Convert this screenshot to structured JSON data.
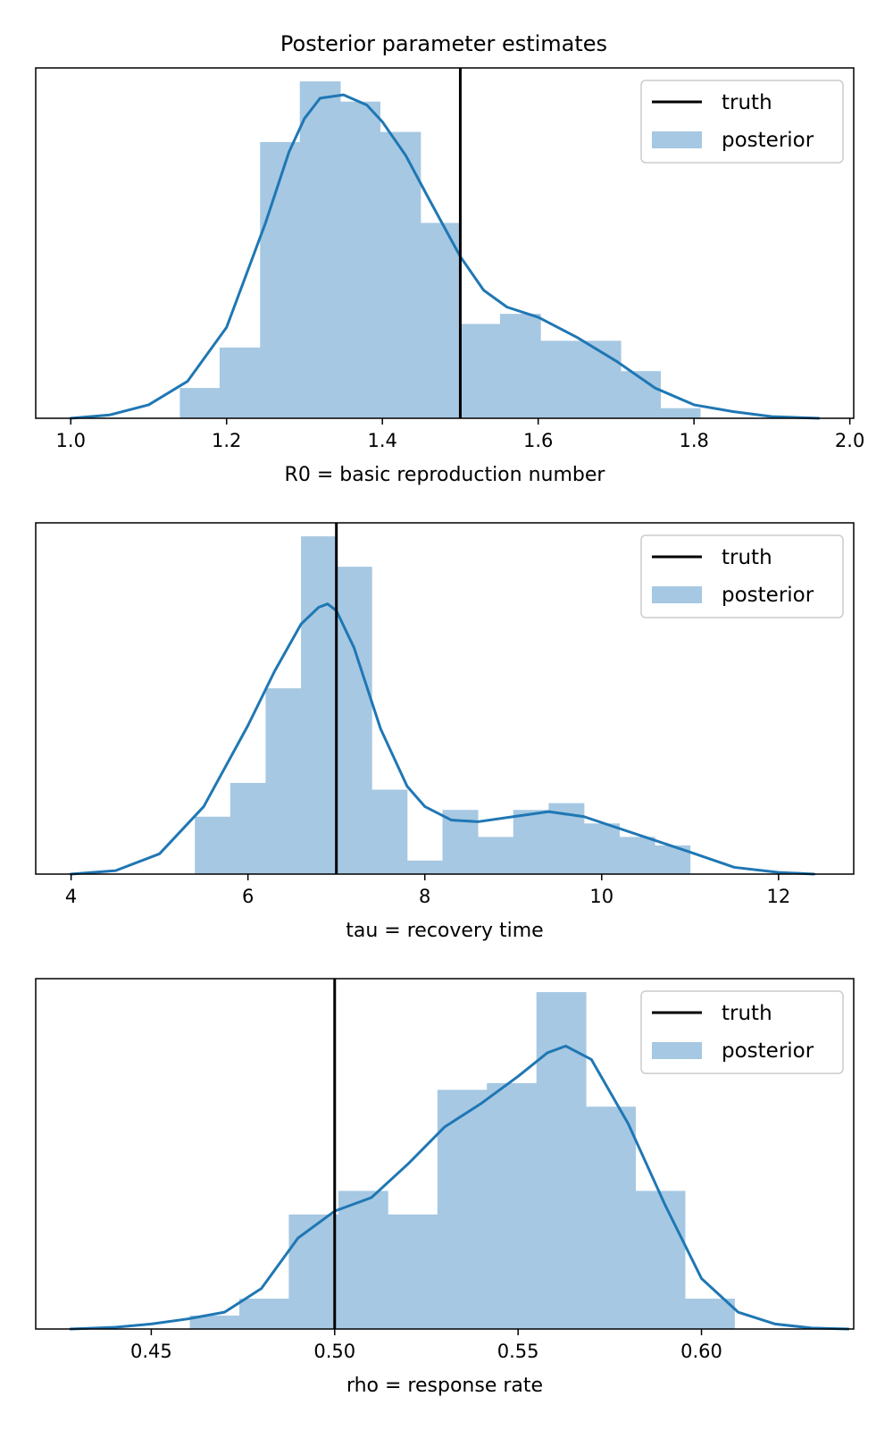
{
  "figure_title": "Posterior parameter estimates",
  "legend": {
    "truth_label": "truth",
    "posterior_label": "posterior",
    "placement": "upper-right"
  },
  "colors": {
    "hist_fill": "#a6c8e2",
    "kde_line": "#1f77b4",
    "truth_line": "#000000"
  },
  "chart_data": [
    {
      "type": "histogram+kde",
      "xlabel": "R0 = basic reproduction number",
      "xlim": [
        0.955,
        2.005
      ],
      "ymax": 1.04,
      "xticks": [
        1.0,
        1.2,
        1.4,
        1.6,
        1.8,
        2.0
      ],
      "xtick_labels": [
        "1.0",
        "1.2",
        "1.4",
        "1.6",
        "1.8",
        "2.0"
      ],
      "truth": 1.5,
      "hist_bins": [
        {
          "x0": 1.14,
          "x1": 1.191,
          "h": 0.09
        },
        {
          "x0": 1.191,
          "x1": 1.243,
          "h": 0.21
        },
        {
          "x0": 1.243,
          "x1": 1.294,
          "h": 0.82
        },
        {
          "x0": 1.294,
          "x1": 1.346,
          "h": 1.0
        },
        {
          "x0": 1.346,
          "x1": 1.397,
          "h": 0.94
        },
        {
          "x0": 1.397,
          "x1": 1.449,
          "h": 0.85
        },
        {
          "x0": 1.449,
          "x1": 1.5,
          "h": 0.58
        },
        {
          "x0": 1.5,
          "x1": 1.551,
          "h": 0.28
        },
        {
          "x0": 1.551,
          "x1": 1.603,
          "h": 0.31
        },
        {
          "x0": 1.603,
          "x1": 1.654,
          "h": 0.23
        },
        {
          "x0": 1.654,
          "x1": 1.706,
          "h": 0.23
        },
        {
          "x0": 1.706,
          "x1": 1.757,
          "h": 0.14
        },
        {
          "x0": 1.757,
          "x1": 1.808,
          "h": 0.03
        }
      ],
      "kde": {
        "x": [
          1.0,
          1.05,
          1.1,
          1.15,
          1.2,
          1.25,
          1.28,
          1.3,
          1.32,
          1.35,
          1.38,
          1.4,
          1.43,
          1.46,
          1.5,
          1.53,
          1.56,
          1.6,
          1.65,
          1.7,
          1.75,
          1.8,
          1.85,
          1.9,
          1.96
        ],
        "y": [
          0.0,
          0.01,
          0.04,
          0.11,
          0.27,
          0.58,
          0.79,
          0.89,
          0.95,
          0.96,
          0.93,
          0.88,
          0.78,
          0.65,
          0.48,
          0.38,
          0.33,
          0.3,
          0.24,
          0.17,
          0.09,
          0.04,
          0.02,
          0.005,
          0.0
        ]
      }
    },
    {
      "type": "histogram+kde",
      "xlabel": "tau = recovery time",
      "xlim": [
        3.6,
        12.85
      ],
      "ymax": 1.04,
      "xticks": [
        4,
        6,
        8,
        10,
        12
      ],
      "xtick_labels": [
        "4",
        "6",
        "8",
        "10",
        "12"
      ],
      "truth": 7.0,
      "hist_bins": [
        {
          "x0": 5.4,
          "x1": 5.8,
          "h": 0.17
        },
        {
          "x0": 5.8,
          "x1": 6.2,
          "h": 0.27
        },
        {
          "x0": 6.2,
          "x1": 6.6,
          "h": 0.55
        },
        {
          "x0": 6.6,
          "x1": 7.0,
          "h": 1.0
        },
        {
          "x0": 7.0,
          "x1": 7.4,
          "h": 0.91
        },
        {
          "x0": 7.4,
          "x1": 7.8,
          "h": 0.25
        },
        {
          "x0": 7.8,
          "x1": 8.2,
          "h": 0.04
        },
        {
          "x0": 8.2,
          "x1": 8.6,
          "h": 0.19
        },
        {
          "x0": 8.6,
          "x1": 9.0,
          "h": 0.11
        },
        {
          "x0": 9.0,
          "x1": 9.4,
          "h": 0.19
        },
        {
          "x0": 9.4,
          "x1": 9.8,
          "h": 0.21
        },
        {
          "x0": 9.8,
          "x1": 10.2,
          "h": 0.15
        },
        {
          "x0": 10.2,
          "x1": 10.6,
          "h": 0.11
        },
        {
          "x0": 10.6,
          "x1": 11.0,
          "h": 0.085
        }
      ],
      "kde": {
        "x": [
          4.0,
          4.5,
          5.0,
          5.5,
          6.0,
          6.3,
          6.6,
          6.8,
          6.9,
          7.0,
          7.2,
          7.5,
          7.8,
          8.0,
          8.3,
          8.6,
          9.0,
          9.4,
          9.8,
          10.2,
          10.6,
          11.0,
          11.5,
          12.0,
          12.4
        ],
        "y": [
          0.0,
          0.01,
          0.06,
          0.2,
          0.44,
          0.6,
          0.74,
          0.79,
          0.8,
          0.78,
          0.67,
          0.43,
          0.26,
          0.2,
          0.16,
          0.155,
          0.17,
          0.185,
          0.17,
          0.135,
          0.1,
          0.065,
          0.02,
          0.005,
          0.0
        ]
      }
    },
    {
      "type": "histogram+kde",
      "xlabel": "rho = response rate",
      "xlim": [
        0.4185,
        0.6415
      ],
      "ymax": 1.04,
      "xticks": [
        0.45,
        0.5,
        0.55,
        0.6
      ],
      "xtick_labels": [
        "0.45",
        "0.50",
        "0.55",
        "0.60"
      ],
      "truth": 0.5,
      "hist_bins": [
        {
          "x0": 0.4605,
          "x1": 0.474,
          "h": 0.04
        },
        {
          "x0": 0.474,
          "x1": 0.4875,
          "h": 0.09
        },
        {
          "x0": 0.4875,
          "x1": 0.501,
          "h": 0.34
        },
        {
          "x0": 0.501,
          "x1": 0.5145,
          "h": 0.41
        },
        {
          "x0": 0.5145,
          "x1": 0.528,
          "h": 0.34
        },
        {
          "x0": 0.528,
          "x1": 0.5415,
          "h": 0.71
        },
        {
          "x0": 0.5415,
          "x1": 0.555,
          "h": 0.73
        },
        {
          "x0": 0.555,
          "x1": 0.5685,
          "h": 1.0
        },
        {
          "x0": 0.5685,
          "x1": 0.582,
          "h": 0.66
        },
        {
          "x0": 0.582,
          "x1": 0.5955,
          "h": 0.41
        },
        {
          "x0": 0.5955,
          "x1": 0.609,
          "h": 0.09
        }
      ],
      "kde": {
        "x": [
          0.428,
          0.44,
          0.45,
          0.46,
          0.47,
          0.48,
          0.49,
          0.5,
          0.51,
          0.52,
          0.53,
          0.54,
          0.55,
          0.558,
          0.563,
          0.57,
          0.58,
          0.59,
          0.6,
          0.61,
          0.62,
          0.63,
          0.64
        ],
        "y": [
          0.0,
          0.005,
          0.015,
          0.03,
          0.05,
          0.12,
          0.27,
          0.35,
          0.39,
          0.49,
          0.6,
          0.67,
          0.75,
          0.82,
          0.84,
          0.8,
          0.61,
          0.37,
          0.15,
          0.05,
          0.015,
          0.003,
          0.0
        ]
      }
    }
  ]
}
